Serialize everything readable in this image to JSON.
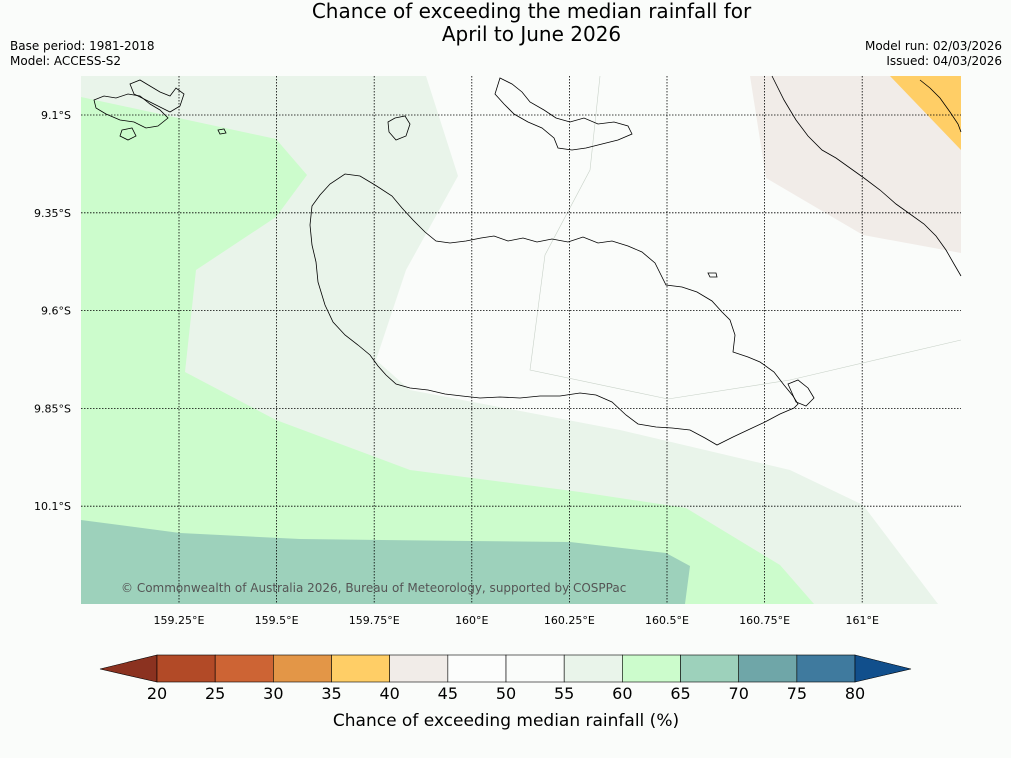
{
  "title": {
    "line1": "Chance of exceeding the median rainfall for",
    "line2": "April to June 2026"
  },
  "meta": {
    "base_period": "Base period: 1981-2018",
    "model": "Model: ACCESS-S2",
    "model_run": "Model run: 02/03/2026",
    "issued": "Issued: 04/03/2026"
  },
  "map": {
    "lat_ticks": [
      {
        "value": -9.1,
        "label": "9.1°S"
      },
      {
        "value": -9.35,
        "label": "9.35°S"
      },
      {
        "value": -9.6,
        "label": "9.6°S"
      },
      {
        "value": -9.85,
        "label": "9.85°S"
      },
      {
        "value": -10.1,
        "label": "10.1°S"
      }
    ],
    "lon_ticks": [
      {
        "value": 159.25,
        "label": "159.25°E"
      },
      {
        "value": 159.5,
        "label": "159.5°E"
      },
      {
        "value": 159.75,
        "label": "159.75°E"
      },
      {
        "value": 160.0,
        "label": "160°E"
      },
      {
        "value": 160.25,
        "label": "160.25°E"
      },
      {
        "value": 160.5,
        "label": "160.5°E"
      },
      {
        "value": 160.75,
        "label": "160.75°E"
      },
      {
        "value": 161.0,
        "label": "161°E"
      }
    ],
    "copyright": "© Commonwealth of Australia 2026, Bureau of Meteorology, supported by COSPPac",
    "colors": {
      "c55_60": "#e9f4ea",
      "c60_65": "#ccfccc",
      "c65_70": "#9dd1bb",
      "c40_45": "#f1ece8",
      "c35_40": "#ffce66",
      "c50_55": "#fafcfa"
    }
  },
  "colorbar": {
    "title": "Chance of exceeding median rainfall (%)",
    "labels": [
      "20",
      "25",
      "30",
      "35",
      "40",
      "45",
      "50",
      "55",
      "60",
      "65",
      "70",
      "75",
      "80"
    ],
    "under_color": "#8b3220",
    "over_color": "#114f8c",
    "colors": [
      "#b24a27",
      "#cd6434",
      "#e39647",
      "#ffce66",
      "#f1ece8",
      "#fcfdfc",
      "#fafcfa",
      "#e9f4ea",
      "#ccfccc",
      "#9dd1bb",
      "#6fa6a8",
      "#3f7a9e"
    ]
  }
}
